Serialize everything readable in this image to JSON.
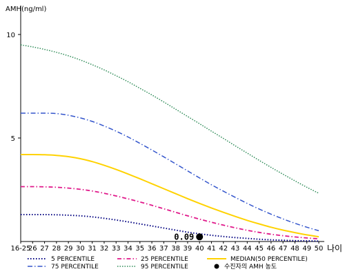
{
  "chart_data": {
    "type": "line",
    "ylabel": "AMH(ng/ml)",
    "xlabel": "나이",
    "ylim": [
      0,
      11
    ],
    "x_categories": [
      "16-25",
      "26",
      "27",
      "28",
      "29",
      "30",
      "31",
      "32",
      "33",
      "34",
      "35",
      "36",
      "37",
      "38",
      "39",
      "40",
      "41",
      "42",
      "43",
      "44",
      "45",
      "46",
      "47",
      "48",
      "49",
      "50"
    ],
    "y_ticks": [
      5,
      10
    ],
    "series": [
      {
        "name": "5 PERCENTILE",
        "color": "#000080",
        "dash": "1.5,2.5",
        "width": 2,
        "values": [
          1.3,
          1.3,
          1.3,
          1.29,
          1.27,
          1.24,
          1.19,
          1.12,
          1.04,
          0.95,
          0.85,
          0.75,
          0.65,
          0.55,
          0.45,
          0.37,
          0.3,
          0.24,
          0.19,
          0.15,
          0.11,
          0.08,
          0.06,
          0.04,
          0.03,
          0.02
        ]
      },
      {
        "name": "25 PERCENTILE",
        "color": "#e0188a",
        "dash": "6,3,1.5,3",
        "width": 1.8,
        "values": [
          2.65,
          2.65,
          2.64,
          2.62,
          2.58,
          2.52,
          2.44,
          2.33,
          2.2,
          2.06,
          1.91,
          1.75,
          1.58,
          1.41,
          1.24,
          1.08,
          0.93,
          0.79,
          0.66,
          0.54,
          0.44,
          0.35,
          0.28,
          0.22,
          0.17,
          0.13
        ]
      },
      {
        "name": "MEDIAN(50 PERCENTILE)",
        "color": "#ffd200",
        "dash": "",
        "width": 2,
        "values": [
          4.2,
          4.2,
          4.19,
          4.16,
          4.1,
          4.0,
          3.86,
          3.68,
          3.48,
          3.26,
          3.03,
          2.79,
          2.55,
          2.31,
          2.07,
          1.84,
          1.62,
          1.41,
          1.21,
          1.02,
          0.85,
          0.69,
          0.55,
          0.43,
          0.32,
          0.23
        ]
      },
      {
        "name": "75 PERCENTILE",
        "color": "#3355cc",
        "dash": "7,3,1.5,3",
        "width": 1.5,
        "values": [
          6.2,
          6.2,
          6.2,
          6.18,
          6.1,
          5.97,
          5.8,
          5.58,
          5.33,
          5.05,
          4.74,
          4.42,
          4.09,
          3.75,
          3.41,
          3.07,
          2.74,
          2.43,
          2.13,
          1.84,
          1.57,
          1.32,
          1.09,
          0.88,
          0.69,
          0.52
        ]
      },
      {
        "name": "95 PERCENTILE",
        "color": "#2e8b57",
        "dash": "1.5,2",
        "width": 1.5,
        "values": [
          9.5,
          9.4,
          9.28,
          9.14,
          8.97,
          8.77,
          8.54,
          8.29,
          8.01,
          7.72,
          7.4,
          7.08,
          6.74,
          6.39,
          6.04,
          5.69,
          5.33,
          4.98,
          4.62,
          4.27,
          3.92,
          3.58,
          3.25,
          2.93,
          2.62,
          2.33
        ]
      }
    ],
    "marker": {
      "name": "수진자의 AMH 농도",
      "x_category": "40",
      "y": 0.09,
      "label": "0.09",
      "color": "#000000"
    },
    "legend_position": "bottom",
    "legend_order": [
      "5 PERCENTILE",
      "25 PERCENTILE",
      "MEDIAN(50 PERCENTILE)",
      "75 PERCENTILE",
      "95 PERCENTILE",
      "수진자의 AMH 농도"
    ],
    "grid": false
  }
}
